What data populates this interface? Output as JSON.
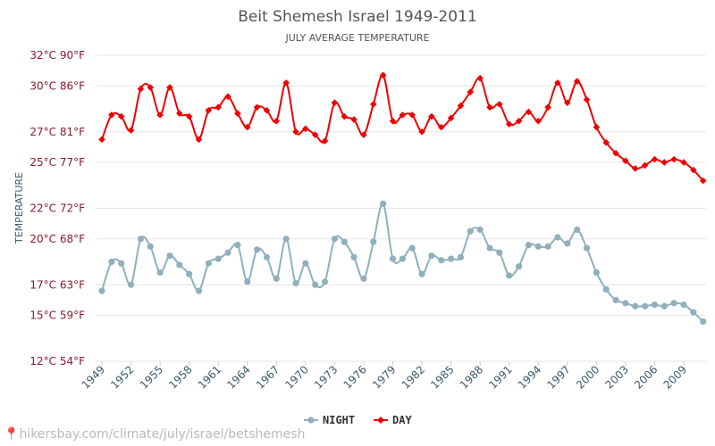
{
  "chart_data": {
    "type": "line",
    "title": "Beit Shemesh Israel 1949-2011",
    "subtitle": "JULY AVERAGE TEMPERATURE",
    "ylabel": "TEMPERATURE",
    "ylim": [
      12,
      32
    ],
    "yticks": [
      {
        "value": 12,
        "label": "12°C 54°F"
      },
      {
        "value": 15,
        "label": "15°C 59°F"
      },
      {
        "value": 17,
        "label": "17°C 63°F"
      },
      {
        "value": 20,
        "label": "20°C 68°F"
      },
      {
        "value": 22,
        "label": "22°C 72°F"
      },
      {
        "value": 25,
        "label": "25°C 77°F"
      },
      {
        "value": 27,
        "label": "27°C 81°F"
      },
      {
        "value": 30,
        "label": "30°C 86°F"
      },
      {
        "value": 32,
        "label": "32°C 90°F"
      }
    ],
    "xticks": [
      1949,
      1952,
      1955,
      1958,
      1961,
      1964,
      1967,
      1970,
      1973,
      1976,
      1979,
      1982,
      1985,
      1988,
      1991,
      1994,
      1997,
      2000,
      2003,
      2006,
      2009
    ],
    "x": [
      1949,
      1950,
      1951,
      1952,
      1953,
      1954,
      1955,
      1956,
      1957,
      1958,
      1959,
      1960,
      1961,
      1962,
      1963,
      1964,
      1965,
      1966,
      1967,
      1968,
      1969,
      1970,
      1971,
      1972,
      1973,
      1974,
      1975,
      1976,
      1977,
      1978,
      1979,
      1980,
      1981,
      1982,
      1983,
      1984,
      1985,
      1986,
      1987,
      1988,
      1989,
      1990,
      1991,
      1992,
      1993,
      1994,
      1995,
      1996,
      1997,
      1998,
      1999,
      2000,
      2001,
      2002,
      2003,
      2004,
      2005,
      2006,
      2007,
      2008,
      2009,
      2010,
      2011
    ],
    "series": [
      {
        "name": "NIGHT",
        "color": "#8fb0bc",
        "values": [
          16.6,
          18.5,
          18.4,
          17.0,
          20.0,
          19.5,
          17.8,
          18.9,
          18.3,
          17.7,
          16.6,
          18.4,
          18.7,
          19.1,
          19.6,
          17.2,
          19.3,
          18.8,
          17.4,
          20.0,
          17.1,
          18.4,
          17.0,
          17.2,
          20.0,
          19.8,
          18.8,
          17.4,
          19.8,
          22.3,
          18.7,
          18.7,
          19.4,
          17.7,
          18.9,
          18.6,
          18.7,
          18.8,
          20.5,
          20.6,
          19.4,
          19.1,
          17.6,
          18.2,
          19.6,
          19.5,
          19.5,
          20.1,
          19.7,
          20.6,
          19.4,
          17.8,
          16.7,
          16.0,
          15.8,
          15.6,
          15.6,
          15.7,
          15.6,
          15.8,
          15.7,
          15.2,
          14.6
        ]
      },
      {
        "name": "DAY",
        "color": "#ee0000",
        "values": [
          26.5,
          28.1,
          28.0,
          27.1,
          29.8,
          29.9,
          28.1,
          29.9,
          28.2,
          28.0,
          26.5,
          28.4,
          28.6,
          29.3,
          28.2,
          27.3,
          28.6,
          28.4,
          27.7,
          30.2,
          27.0,
          27.2,
          26.8,
          26.4,
          28.9,
          28.0,
          27.8,
          26.8,
          28.8,
          30.7,
          27.7,
          28.1,
          28.1,
          27.0,
          28.0,
          27.3,
          27.9,
          28.7,
          29.6,
          30.5,
          28.6,
          28.8,
          27.5,
          27.7,
          28.3,
          27.7,
          28.6,
          30.2,
          28.9,
          30.3,
          29.1,
          27.3,
          26.3,
          25.6,
          25.1,
          24.6,
          24.8,
          25.2,
          25.0,
          25.2,
          25.0,
          24.5,
          23.8
        ]
      }
    ],
    "grid": true,
    "legend_position": "bottom-center"
  },
  "watermark": {
    "text": "hikersbay.com/climate/july/israel/betshemesh",
    "icon": "map-pin-icon"
  }
}
